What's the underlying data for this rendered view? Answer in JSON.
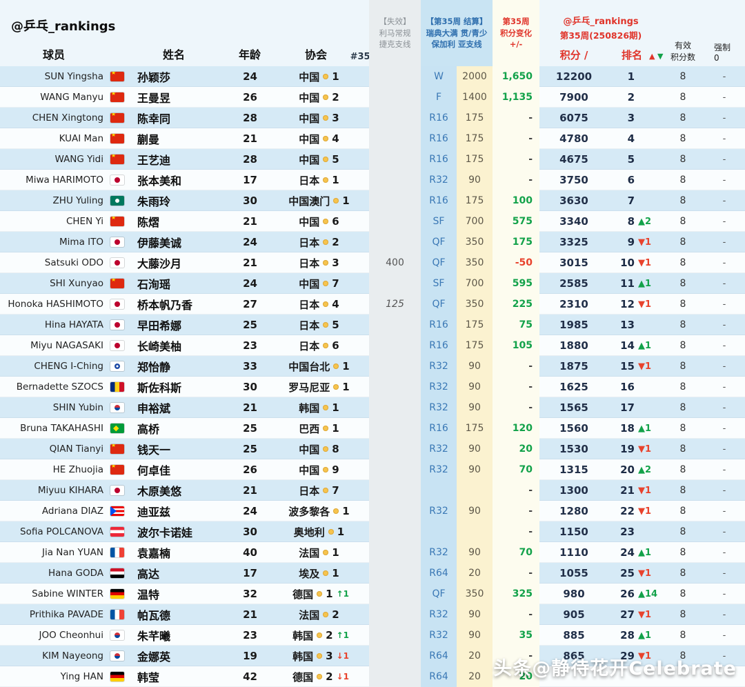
{
  "title": "@乒乓_rankings",
  "header": {
    "account": "@乒乓_rankings",
    "columns": {
      "player": "球员",
      "name": "姓名",
      "age": "年龄",
      "assoc": "协会",
      "week_sort": "#35↑↓"
    },
    "expired": [
      "【失效】",
      "利马常规",
      "捷克支线"
    ],
    "settlement": [
      "【第35周 结算】",
      "瑞典大满 贯/青少",
      "保加利 亚支线"
    ],
    "change": [
      "第35周",
      "积分变化",
      "+/-"
    ],
    "ranking_block": {
      "account": "@乒乓_rankings",
      "edition": "第35周(250826期)",
      "points_label": "积分 /",
      "rank_label": "排名",
      "up": "▲",
      "down": "▼"
    },
    "valid": [
      "有效",
      "积分数"
    ],
    "forced": "强制0"
  },
  "colors": {
    "positive": "#13a24a",
    "negative": "#e8432d",
    "header_red": "#e0352b",
    "header_blue": "#2f6fae",
    "settle_round_bg": "#c8e3f3",
    "settle_pts_bg": "#fbf2d0"
  },
  "watermark": "头条@静待花开Celebrate",
  "chart_data": {
    "type": "table",
    "columns": [
      "球员",
      "姓名",
      "年龄",
      "协会",
      "【失效】利马常规捷克支线",
      "【第35周 结算】瑞典大满贯/青少保加利亚支线 轮次",
      "【第35周 结算】积分",
      "第35周积分变化+/-",
      "积分",
      "排名",
      "排名变动",
      "有效积分数",
      "强制0"
    ],
    "rows": [
      {
        "player": "SUN Yingsha",
        "flag": "cn",
        "name": "孙颖莎",
        "age": "24",
        "assoc": "中国",
        "assoc_rank": "1",
        "assoc_move": "",
        "assoc_move_dir": "",
        "expired": "",
        "expired_style": "",
        "round": "W",
        "round_pts": "2000",
        "change": "1,650",
        "change_dir": "pos",
        "points": "12200",
        "rank": "1",
        "move": "",
        "move_dir": "",
        "valid": "8",
        "forced": "-"
      },
      {
        "player": "WANG Manyu",
        "flag": "cn",
        "name": "王曼昱",
        "age": "26",
        "assoc": "中国",
        "assoc_rank": "2",
        "assoc_move": "",
        "assoc_move_dir": "",
        "expired": "",
        "expired_style": "",
        "round": "F",
        "round_pts": "1400",
        "change": "1,135",
        "change_dir": "pos",
        "points": "7900",
        "rank": "2",
        "move": "",
        "move_dir": "",
        "valid": "8",
        "forced": "-"
      },
      {
        "player": "CHEN Xingtong",
        "flag": "cn",
        "name": "陈幸同",
        "age": "28",
        "assoc": "中国",
        "assoc_rank": "3",
        "assoc_move": "",
        "assoc_move_dir": "",
        "expired": "",
        "expired_style": "",
        "round": "R16",
        "round_pts": "175",
        "change": "-",
        "change_dir": "",
        "points": "6075",
        "rank": "3",
        "move": "",
        "move_dir": "",
        "valid": "8",
        "forced": "-"
      },
      {
        "player": "KUAI Man",
        "flag": "cn",
        "name": "蒯曼",
        "age": "21",
        "assoc": "中国",
        "assoc_rank": "4",
        "assoc_move": "",
        "assoc_move_dir": "",
        "expired": "",
        "expired_style": "",
        "round": "R16",
        "round_pts": "175",
        "change": "-",
        "change_dir": "",
        "points": "4780",
        "rank": "4",
        "move": "",
        "move_dir": "",
        "valid": "8",
        "forced": "-"
      },
      {
        "player": "WANG Yidi",
        "flag": "cn",
        "name": "王艺迪",
        "age": "28",
        "assoc": "中国",
        "assoc_rank": "5",
        "assoc_move": "",
        "assoc_move_dir": "",
        "expired": "",
        "expired_style": "",
        "round": "R16",
        "round_pts": "175",
        "change": "-",
        "change_dir": "",
        "points": "4675",
        "rank": "5",
        "move": "",
        "move_dir": "",
        "valid": "8",
        "forced": "-"
      },
      {
        "player": "Miwa HARIMOTO",
        "flag": "jp",
        "name": "张本美和",
        "age": "17",
        "assoc": "日本",
        "assoc_rank": "1",
        "assoc_move": "",
        "assoc_move_dir": "",
        "expired": "",
        "expired_style": "",
        "round": "R32",
        "round_pts": "90",
        "change": "-",
        "change_dir": "",
        "points": "3750",
        "rank": "6",
        "move": "",
        "move_dir": "",
        "valid": "8",
        "forced": "-"
      },
      {
        "player": "ZHU Yuling",
        "flag": "mo",
        "name": "朱雨玲",
        "age": "30",
        "assoc": "中国澳门",
        "assoc_rank": "1",
        "assoc_move": "",
        "assoc_move_dir": "",
        "expired": "",
        "expired_style": "",
        "round": "R16",
        "round_pts": "175",
        "change": "100",
        "change_dir": "pos",
        "points": "3630",
        "rank": "7",
        "move": "",
        "move_dir": "",
        "valid": "8",
        "forced": "-"
      },
      {
        "player": "CHEN Yi",
        "flag": "cn",
        "name": "陈熠",
        "age": "21",
        "assoc": "中国",
        "assoc_rank": "6",
        "assoc_move": "",
        "assoc_move_dir": "",
        "expired": "",
        "expired_style": "",
        "round": "SF",
        "round_pts": "700",
        "change": "575",
        "change_dir": "pos",
        "points": "3340",
        "rank": "8",
        "move": "▲2",
        "move_dir": "up",
        "valid": "8",
        "forced": "-"
      },
      {
        "player": "Mima ITO",
        "flag": "jp",
        "name": "伊藤美诚",
        "age": "24",
        "assoc": "日本",
        "assoc_rank": "2",
        "assoc_move": "",
        "assoc_move_dir": "",
        "expired": "",
        "expired_style": "",
        "round": "QF",
        "round_pts": "350",
        "change": "175",
        "change_dir": "pos",
        "points": "3325",
        "rank": "9",
        "move": "▼1",
        "move_dir": "down",
        "valid": "8",
        "forced": "-"
      },
      {
        "player": "Satsuki ODO",
        "flag": "jp",
        "name": "大藤沙月",
        "age": "21",
        "assoc": "日本",
        "assoc_rank": "3",
        "assoc_move": "",
        "assoc_move_dir": "",
        "expired": "400",
        "expired_style": "",
        "round": "QF",
        "round_pts": "350",
        "change": "-50",
        "change_dir": "neg",
        "points": "3015",
        "rank": "10",
        "move": "▼1",
        "move_dir": "down",
        "valid": "8",
        "forced": "-"
      },
      {
        "player": "SHI Xunyao",
        "flag": "cn",
        "name": "石洵瑶",
        "age": "24",
        "assoc": "中国",
        "assoc_rank": "7",
        "assoc_move": "",
        "assoc_move_dir": "",
        "expired": "",
        "expired_style": "",
        "round": "SF",
        "round_pts": "700",
        "change": "595",
        "change_dir": "pos",
        "points": "2585",
        "rank": "11",
        "move": "▲1",
        "move_dir": "up",
        "valid": "8",
        "forced": "-"
      },
      {
        "player": "Honoka HASHIMOTO",
        "flag": "jp",
        "name": "桥本帆乃香",
        "age": "27",
        "assoc": "日本",
        "assoc_rank": "4",
        "assoc_move": "",
        "assoc_move_dir": "",
        "expired": "125",
        "expired_style": "italic",
        "round": "QF",
        "round_pts": "350",
        "change": "225",
        "change_dir": "pos",
        "points": "2310",
        "rank": "12",
        "move": "▼1",
        "move_dir": "down",
        "valid": "8",
        "forced": "-"
      },
      {
        "player": "Hina HAYATA",
        "flag": "jp",
        "name": "早田希娜",
        "age": "25",
        "assoc": "日本",
        "assoc_rank": "5",
        "assoc_move": "",
        "assoc_move_dir": "",
        "expired": "",
        "expired_style": "",
        "round": "R16",
        "round_pts": "175",
        "change": "75",
        "change_dir": "pos",
        "points": "1985",
        "rank": "13",
        "move": "",
        "move_dir": "",
        "valid": "8",
        "forced": "-"
      },
      {
        "player": "Miyu NAGASAKI",
        "flag": "jp",
        "name": "长崎美柚",
        "age": "23",
        "assoc": "日本",
        "assoc_rank": "6",
        "assoc_move": "",
        "assoc_move_dir": "",
        "expired": "",
        "expired_style": "",
        "round": "R16",
        "round_pts": "175",
        "change": "105",
        "change_dir": "pos",
        "points": "1880",
        "rank": "14",
        "move": "▲1",
        "move_dir": "up",
        "valid": "8",
        "forced": "-"
      },
      {
        "player": "CHENG I-Ching",
        "flag": "tpe",
        "name": "郑怡静",
        "age": "33",
        "assoc": "中国台北",
        "assoc_rank": "1",
        "assoc_move": "",
        "assoc_move_dir": "",
        "expired": "",
        "expired_style": "",
        "round": "R32",
        "round_pts": "90",
        "change": "-",
        "change_dir": "",
        "points": "1875",
        "rank": "15",
        "move": "▼1",
        "move_dir": "down",
        "valid": "8",
        "forced": "-"
      },
      {
        "player": "Bernadette SZOCS",
        "flag": "ro",
        "name": "斯佐科斯",
        "age": "30",
        "assoc": "罗马尼亚",
        "assoc_rank": "1",
        "assoc_move": "",
        "assoc_move_dir": "",
        "expired": "",
        "expired_style": "",
        "round": "R32",
        "round_pts": "90",
        "change": "-",
        "change_dir": "",
        "points": "1625",
        "rank": "16",
        "move": "",
        "move_dir": "",
        "valid": "8",
        "forced": "-"
      },
      {
        "player": "SHIN Yubin",
        "flag": "kr",
        "name": "申裕斌",
        "age": "21",
        "assoc": "韩国",
        "assoc_rank": "1",
        "assoc_move": "",
        "assoc_move_dir": "",
        "expired": "",
        "expired_style": "",
        "round": "R32",
        "round_pts": "90",
        "change": "-",
        "change_dir": "",
        "points": "1565",
        "rank": "17",
        "move": "",
        "move_dir": "",
        "valid": "8",
        "forced": "-"
      },
      {
        "player": "Bruna TAKAHASHI",
        "flag": "br",
        "name": "高桥",
        "age": "25",
        "assoc": "巴西",
        "assoc_rank": "1",
        "assoc_move": "",
        "assoc_move_dir": "",
        "expired": "",
        "expired_style": "",
        "round": "R16",
        "round_pts": "175",
        "change": "120",
        "change_dir": "pos",
        "points": "1560",
        "rank": "18",
        "move": "▲1",
        "move_dir": "up",
        "valid": "8",
        "forced": "-"
      },
      {
        "player": "QIAN Tianyi",
        "flag": "cn",
        "name": "钱天一",
        "age": "25",
        "assoc": "中国",
        "assoc_rank": "8",
        "assoc_move": "",
        "assoc_move_dir": "",
        "expired": "",
        "expired_style": "",
        "round": "R32",
        "round_pts": "90",
        "change": "20",
        "change_dir": "pos",
        "points": "1530",
        "rank": "19",
        "move": "▼1",
        "move_dir": "down",
        "valid": "8",
        "forced": "-"
      },
      {
        "player": "HE Zhuojia",
        "flag": "cn",
        "name": "何卓佳",
        "age": "26",
        "assoc": "中国",
        "assoc_rank": "9",
        "assoc_move": "",
        "assoc_move_dir": "",
        "expired": "",
        "expired_style": "",
        "round": "R32",
        "round_pts": "90",
        "change": "70",
        "change_dir": "pos",
        "points": "1315",
        "rank": "20",
        "move": "▲2",
        "move_dir": "up",
        "valid": "8",
        "forced": "-"
      },
      {
        "player": "Miyuu KIHARA",
        "flag": "jp",
        "name": "木原美悠",
        "age": "21",
        "assoc": "日本",
        "assoc_rank": "7",
        "assoc_move": "",
        "assoc_move_dir": "",
        "expired": "",
        "expired_style": "",
        "round": "",
        "round_pts": "",
        "change": "-",
        "change_dir": "",
        "points": "1300",
        "rank": "21",
        "move": "▼1",
        "move_dir": "down",
        "valid": "8",
        "forced": "-"
      },
      {
        "player": "Adriana DIAZ",
        "flag": "pr",
        "name": "迪亚兹",
        "age": "24",
        "assoc": "波多黎各",
        "assoc_rank": "1",
        "assoc_move": "",
        "assoc_move_dir": "",
        "expired": "",
        "expired_style": "",
        "round": "R32",
        "round_pts": "90",
        "change": "-",
        "change_dir": "",
        "points": "1280",
        "rank": "22",
        "move": "▼1",
        "move_dir": "down",
        "valid": "8",
        "forced": "-"
      },
      {
        "player": "Sofia POLCANOVA",
        "flag": "at",
        "name": "波尔卡诺娃",
        "age": "30",
        "assoc": "奥地利",
        "assoc_rank": "1",
        "assoc_move": "",
        "assoc_move_dir": "",
        "expired": "",
        "expired_style": "",
        "round": "",
        "round_pts": "",
        "change": "-",
        "change_dir": "",
        "points": "1150",
        "rank": "23",
        "move": "",
        "move_dir": "",
        "valid": "8",
        "forced": "-"
      },
      {
        "player": "Jia Nan YUAN",
        "flag": "fr",
        "name": "袁嘉楠",
        "age": "40",
        "assoc": "法国",
        "assoc_rank": "1",
        "assoc_move": "",
        "assoc_move_dir": "",
        "expired": "",
        "expired_style": "",
        "round": "R32",
        "round_pts": "90",
        "change": "70",
        "change_dir": "pos",
        "points": "1110",
        "rank": "24",
        "move": "▲1",
        "move_dir": "up",
        "valid": "8",
        "forced": "-"
      },
      {
        "player": "Hana GODA",
        "flag": "eg",
        "name": "高达",
        "age": "17",
        "assoc": "埃及",
        "assoc_rank": "1",
        "assoc_move": "",
        "assoc_move_dir": "",
        "expired": "",
        "expired_style": "",
        "round": "R64",
        "round_pts": "20",
        "change": "-",
        "change_dir": "",
        "points": "1055",
        "rank": "25",
        "move": "▼1",
        "move_dir": "down",
        "valid": "8",
        "forced": "-"
      },
      {
        "player": "Sabine WINTER",
        "flag": "de",
        "name": "温特",
        "age": "32",
        "assoc": "德国",
        "assoc_rank": "1",
        "assoc_move": "↑1",
        "assoc_move_dir": "up",
        "expired": "",
        "expired_style": "",
        "round": "QF",
        "round_pts": "350",
        "change": "325",
        "change_dir": "pos",
        "points": "980",
        "rank": "26",
        "move": "▲14",
        "move_dir": "up",
        "valid": "8",
        "forced": "-"
      },
      {
        "player": "Prithika PAVADE",
        "flag": "fr",
        "name": "帕瓦德",
        "age": "21",
        "assoc": "法国",
        "assoc_rank": "2",
        "assoc_move": "",
        "assoc_move_dir": "",
        "expired": "",
        "expired_style": "",
        "round": "R32",
        "round_pts": "90",
        "change": "-",
        "change_dir": "",
        "points": "905",
        "rank": "27",
        "move": "▼1",
        "move_dir": "down",
        "valid": "8",
        "forced": "-"
      },
      {
        "player": "JOO Cheonhui",
        "flag": "kr",
        "name": "朱芊曦",
        "age": "23",
        "assoc": "韩国",
        "assoc_rank": "2",
        "assoc_move": "↑1",
        "assoc_move_dir": "up",
        "expired": "",
        "expired_style": "",
        "round": "R32",
        "round_pts": "90",
        "change": "35",
        "change_dir": "pos",
        "points": "885",
        "rank": "28",
        "move": "▲1",
        "move_dir": "up",
        "valid": "8",
        "forced": "-"
      },
      {
        "player": "KIM Nayeong",
        "flag": "kr",
        "name": "金娜英",
        "age": "19",
        "assoc": "韩国",
        "assoc_rank": "3",
        "assoc_move": "↓1",
        "assoc_move_dir": "down",
        "expired": "",
        "expired_style": "",
        "round": "R64",
        "round_pts": "20",
        "change": "-",
        "change_dir": "",
        "points": "865",
        "rank": "29",
        "move": "▼1",
        "move_dir": "down",
        "valid": "8",
        "forced": "-"
      },
      {
        "player": "Ying HAN",
        "flag": "de",
        "name": "韩莹",
        "age": "42",
        "assoc": "德国",
        "assoc_rank": "2",
        "assoc_move": "↓1",
        "assoc_move_dir": "down",
        "expired": "",
        "expired_style": "",
        "round": "R64",
        "round_pts": "20",
        "change": "20",
        "change_dir": "pos",
        "points": "",
        "rank": "",
        "move": "",
        "move_dir": "",
        "valid": "",
        "forced": ""
      }
    ]
  }
}
